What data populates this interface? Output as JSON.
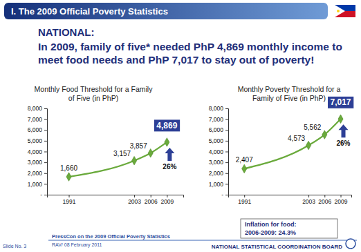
{
  "header": {
    "title": "I. The 2009 Official Poverty Statistics"
  },
  "section": "NATIONAL:",
  "headline": "In 2009, family of five* needed PhP 4,869 monthly income to meet food needs and PhP 7,017 to stay out of poverty!",
  "chart_data": [
    {
      "type": "line",
      "title": "Monthly Food Threshold for a Family of Five (in PhP)",
      "x": [
        1991,
        2003,
        2006,
        2009
      ],
      "values": [
        1660,
        3157,
        3857,
        4869
      ],
      "value_labels": [
        "1,660",
        "3,157",
        "3,857",
        "4,869"
      ],
      "data_labels": true,
      "color": "#6aaa3c",
      "marker": "diamond",
      "xlim": [
        1987,
        2012
      ],
      "xticks": [
        1991,
        2003,
        2006,
        2009
      ],
      "ylim": [
        0,
        8000
      ],
      "yticks": [
        {
          "value": 0,
          "label": "-"
        },
        {
          "value": 1000,
          "label": "1,000"
        },
        {
          "value": 2000,
          "label": "2,000"
        },
        {
          "value": 3000,
          "label": "3,000"
        },
        {
          "value": 4000,
          "label": "4,000"
        },
        {
          "value": 5000,
          "label": "5,000"
        },
        {
          "value": 6000,
          "label": "6,000"
        },
        {
          "value": 7000,
          "label": "7,000"
        },
        {
          "value": 8000,
          "label": "8,000"
        }
      ],
      "grid": false,
      "annotations": [
        "26%"
      ]
    },
    {
      "type": "line",
      "title": "Monthly Poverty Threshold for a Family of Five (in PhP)",
      "x": [
        1991,
        2003,
        2006,
        2009
      ],
      "values": [
        2407,
        4573,
        5562,
        7017
      ],
      "value_labels": [
        "2,407",
        "4,573",
        "5,562",
        "7,017"
      ],
      "data_labels": true,
      "color": "#6aaa3c",
      "marker": "diamond",
      "xlim": [
        1988,
        2011
      ],
      "xticks": [
        1991,
        2003,
        2006,
        2009
      ],
      "ylim": [
        0,
        8000
      ],
      "yticks": [
        {
          "value": 0,
          "label": "-"
        },
        {
          "value": 1000,
          "label": "1,000"
        },
        {
          "value": 2000,
          "label": "2,000"
        },
        {
          "value": 3000,
          "label": "3,000"
        },
        {
          "value": 4000,
          "label": "4,000"
        },
        {
          "value": 5000,
          "label": "5,000"
        },
        {
          "value": 6000,
          "label": "6,000"
        },
        {
          "value": 7000,
          "label": "7,000"
        },
        {
          "value": 8000,
          "label": "8,000"
        }
      ],
      "grid": false,
      "annotations": [
        "26%"
      ]
    }
  ],
  "note": [
    "Inflation for food:",
    "2006-2009: 24.3%"
  ],
  "footer": {
    "event": "PressCon on the 2009 Official Poverty Statistics",
    "slide": "Slide No. 3",
    "reference": "RAV/ 08 February 2011",
    "agency": "NATIONAL STATISTICAL COORDINATION BOARD"
  }
}
